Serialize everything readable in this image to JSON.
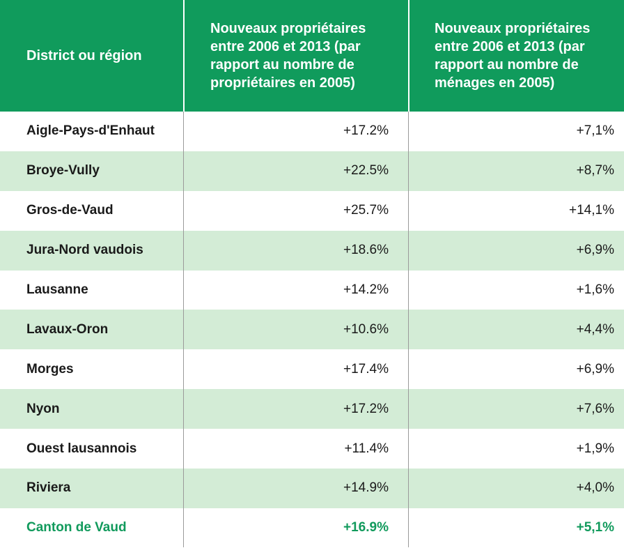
{
  "header": {
    "col1": "District ou région",
    "col2": "Nouveaux propriétaires entre 2006 et 2013 (par rapport au nombre de propriétaires en 2005)",
    "col3": "Nouveaux propriétaires entre 2006 et 2013 (par rapport au nombre de ménages en 2005)"
  },
  "rows": [
    {
      "district": "Aigle-Pays-d'Enhaut",
      "proprietaires": "+17.2%",
      "menages": "+7,1%"
    },
    {
      "district": "Broye-Vully",
      "proprietaires": "+22.5%",
      "menages": "+8,7%"
    },
    {
      "district": "Gros-de-Vaud",
      "proprietaires": "+25.7%",
      "menages": "+14,1%"
    },
    {
      "district": "Jura-Nord vaudois",
      "proprietaires": "+18.6%",
      "menages": "+6,9%"
    },
    {
      "district": "Lausanne",
      "proprietaires": "+14.2%",
      "menages": "+1,6%"
    },
    {
      "district": "Lavaux-Oron",
      "proprietaires": "+10.6%",
      "menages": "+4,4%"
    },
    {
      "district": "Morges",
      "proprietaires": "+17.4%",
      "menages": "+6,9%"
    },
    {
      "district": "Nyon",
      "proprietaires": "+17.2%",
      "menages": "+7,6%"
    },
    {
      "district": "Ouest lausannois",
      "proprietaires": "+11.4%",
      "menages": "+1,9%"
    },
    {
      "district": "Riviera",
      "proprietaires": "+14.9%",
      "menages": "+4,0%"
    }
  ],
  "total": {
    "district": "Canton de Vaud",
    "proprietaires": "+16.9%",
    "menages": "+5,1%"
  },
  "colors": {
    "header_bg": "#109b5c",
    "row_alt": "#d3ecd6",
    "total_text": "#119a5c"
  }
}
